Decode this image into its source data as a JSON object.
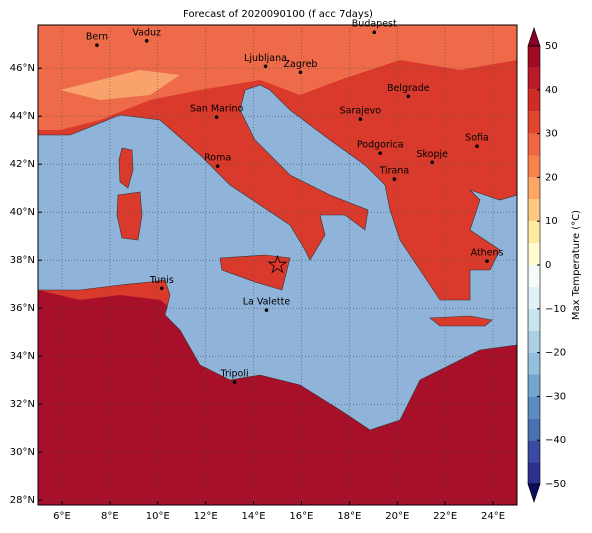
{
  "title": "Forecast of 2020090100 (f acc 7days)",
  "map": {
    "lon_range": [
      5,
      25
    ],
    "lat_range": [
      27.8,
      47.8
    ],
    "lon_ticks": [
      {
        "value": 6,
        "label": "6°E"
      },
      {
        "value": 8,
        "label": "8°E"
      },
      {
        "value": 10,
        "label": "10°E"
      },
      {
        "value": 12,
        "label": "12°E"
      },
      {
        "value": 14,
        "label": "14°E"
      },
      {
        "value": 16,
        "label": "16°E"
      },
      {
        "value": 18,
        "label": "18°E"
      },
      {
        "value": 20,
        "label": "20°E"
      },
      {
        "value": 22,
        "label": "22°E"
      },
      {
        "value": 24,
        "label": "24°E"
      }
    ],
    "lat_ticks": [
      {
        "value": 28,
        "label": "28°N"
      },
      {
        "value": 30,
        "label": "30°N"
      },
      {
        "value": 32,
        "label": "32°N"
      },
      {
        "value": 34,
        "label": "34°N"
      },
      {
        "value": 36,
        "label": "36°N"
      },
      {
        "value": 38,
        "label": "38°N"
      },
      {
        "value": 40,
        "label": "40°N"
      },
      {
        "value": 42,
        "label": "42°N"
      },
      {
        "value": 44,
        "label": "44°N"
      },
      {
        "value": 46,
        "label": "46°N"
      }
    ],
    "grid": true,
    "cities": [
      {
        "name": "Bern",
        "lon": 7.46,
        "lat": 46.96
      },
      {
        "name": "Vaduz",
        "lon": 9.54,
        "lat": 47.14
      },
      {
        "name": "Budapest",
        "lon": 19.04,
        "lat": 47.5
      },
      {
        "name": "Ljubljana",
        "lon": 14.5,
        "lat": 46.08
      },
      {
        "name": "Zagreb",
        "lon": 15.96,
        "lat": 45.83
      },
      {
        "name": "Belgrade",
        "lon": 20.46,
        "lat": 44.83
      },
      {
        "name": "San Marino",
        "lon": 12.46,
        "lat": 43.96
      },
      {
        "name": "Sarajevo",
        "lon": 18.46,
        "lat": 43.88
      },
      {
        "name": "Sofia",
        "lon": 23.33,
        "lat": 42.75
      },
      {
        "name": "Podgorica",
        "lon": 19.29,
        "lat": 42.46
      },
      {
        "name": "Skopje",
        "lon": 21.46,
        "lat": 42.08
      },
      {
        "name": "Roma",
        "lon": 12.5,
        "lat": 41.92
      },
      {
        "name": "Tirana",
        "lon": 19.88,
        "lat": 41.38
      },
      {
        "name": "Athens",
        "lon": 23.75,
        "lat": 37.96
      },
      {
        "name": "Tunis",
        "lon": 10.17,
        "lat": 36.83
      },
      {
        "name": "La Valette",
        "lon": 14.54,
        "lat": 35.92
      },
      {
        "name": "Tripoli",
        "lon": 13.21,
        "lat": 32.92
      }
    ],
    "marker": {
      "lon": 15.0,
      "lat": 37.8,
      "color": "#e0382c"
    }
  },
  "colorbar": {
    "label": "Max Temperature (°C)",
    "range": [
      -50,
      50
    ],
    "ticks": [
      {
        "value": -50,
        "label": "−50"
      },
      {
        "value": -40,
        "label": "−40"
      },
      {
        "value": -30,
        "label": "−30"
      },
      {
        "value": -20,
        "label": "−20"
      },
      {
        "value": -10,
        "label": "−10"
      },
      0,
      10,
      20,
      30,
      40,
      50
    ],
    "colors": [
      "#2b2f8e",
      "#3a4aa3",
      "#4a70b2",
      "#5b8cc0",
      "#75a6cf",
      "#93bfdc",
      "#adcfe4",
      "#c7e4ef",
      "#e1f2f7",
      "#f4fbfa",
      "#fffbd0",
      "#feeaa0",
      "#fdc985",
      "#fca766",
      "#f7834f",
      "#ef6642",
      "#e3462f",
      "#cf2c26",
      "#b91a28",
      "#a20a27"
    ],
    "under_color": "#0d0d5e",
    "over_color": "#8b0026"
  }
}
